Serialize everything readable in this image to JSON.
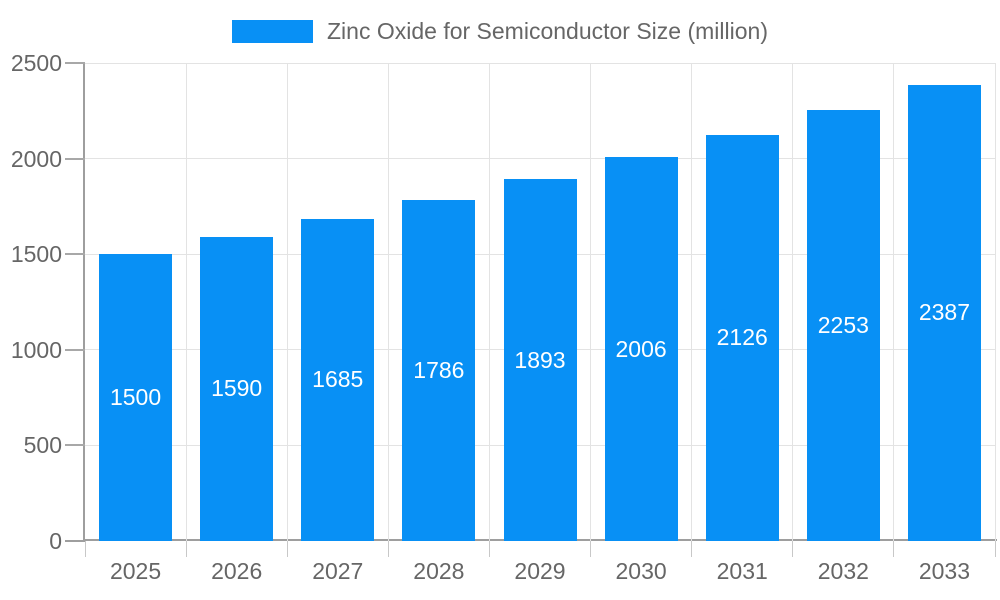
{
  "legend": {
    "label": "Zinc Oxide for Semiconductor Size (million)"
  },
  "chart_data": {
    "type": "bar",
    "title": "Zinc Oxide for Semiconductor Size (million)",
    "categories": [
      "2025",
      "2026",
      "2027",
      "2028",
      "2029",
      "2030",
      "2031",
      "2032",
      "2033"
    ],
    "values": [
      1500,
      1590,
      1685,
      1786,
      1893,
      2006,
      2126,
      2253,
      2387
    ],
    "series": [
      {
        "name": "Zinc Oxide for Semiconductor Size (million)",
        "values": [
          1500,
          1590,
          1685,
          1786,
          1893,
          2006,
          2126,
          2253,
          2387
        ]
      }
    ],
    "xlabel": "",
    "ylabel": "",
    "ylim": [
      0,
      2500
    ],
    "yticks": [
      0,
      500,
      1000,
      1500,
      2000,
      2500
    ],
    "grid": true,
    "legend_position": "top-center",
    "bar_labels_inside": true
  },
  "colors": {
    "bar": "#0890f5",
    "bar_label": "#ffffff",
    "grid": "#e3e3e3",
    "axis": "#9e9e9e",
    "tick_mark": "#c8c8c8",
    "text": "#666666",
    "background": "#ffffff"
  }
}
